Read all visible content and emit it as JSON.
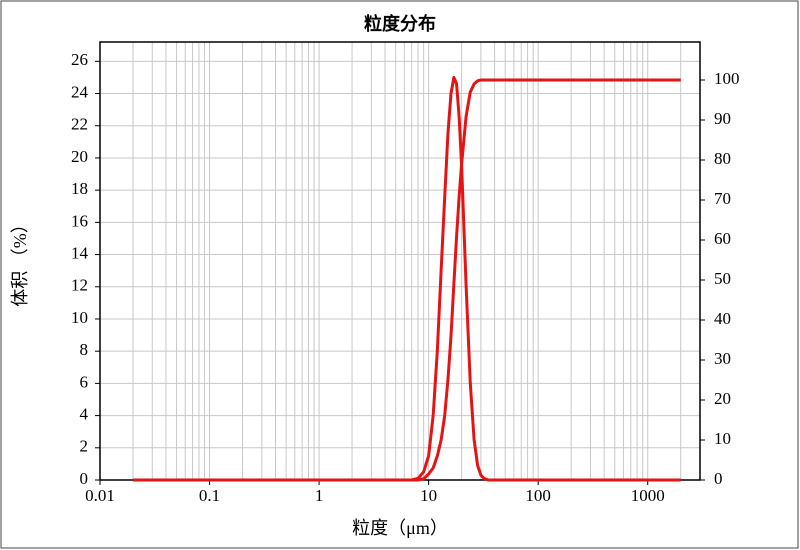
{
  "chart_data": {
    "type": "line",
    "title": "粒度分布",
    "x_label": "粒度（μm）",
    "y_label": "体积 （%）",
    "x_scale": "log",
    "grid": true,
    "xlim": [
      0.01,
      3000
    ],
    "xticks": [
      0.01,
      0.1,
      1,
      10,
      100,
      1000
    ],
    "ylim": [
      0,
      27.2
    ],
    "yticks": [
      0,
      2,
      4,
      6,
      8,
      10,
      12,
      14,
      16,
      18,
      20,
      22,
      24,
      26
    ],
    "y2lim": [
      0,
      109.5
    ],
    "y2ticks": [
      0,
      10,
      20,
      30,
      40,
      50,
      60,
      70,
      80,
      90,
      100
    ],
    "x": [
      0.02,
      0.5,
      5,
      7,
      8,
      9,
      10,
      11,
      12,
      13,
      14,
      15,
      16,
      17,
      18,
      19,
      20,
      22,
      24,
      26,
      28,
      30,
      32,
      35,
      40,
      100,
      1000,
      2000
    ],
    "series": [
      {
        "color": "#e41414",
        "values": [
          0,
          0,
          0,
          0,
          0.1,
          0.5,
          1.5,
          4,
          8,
          13,
          17.5,
          21.5,
          24,
          25,
          24.6,
          22.5,
          19.5,
          12,
          6,
          2.5,
          0.9,
          0.3,
          0.1,
          0,
          0,
          0,
          0,
          0
        ]
      },
      {
        "color": "#e41414",
        "axis": "y2",
        "values": [
          0,
          0,
          0,
          0,
          0,
          0.3,
          1.5,
          3,
          6,
          10,
          16,
          25,
          36,
          49,
          61,
          71,
          79,
          91,
          97,
          99,
          99.8,
          100,
          100,
          100,
          100,
          100,
          100,
          100
        ]
      }
    ]
  }
}
